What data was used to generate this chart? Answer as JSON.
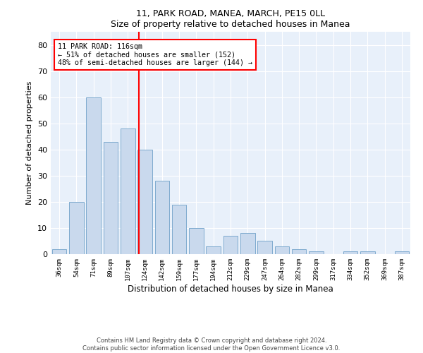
{
  "title1": "11, PARK ROAD, MANEA, MARCH, PE15 0LL",
  "title2": "Size of property relative to detached houses in Manea",
  "xlabel": "Distribution of detached houses by size in Manea",
  "ylabel": "Number of detached properties",
  "bar_color": "#c9d9ed",
  "bar_edge_color": "#6fa0c8",
  "background_color": "#e8f0fa",
  "bins": [
    "36sqm",
    "54sqm",
    "71sqm",
    "89sqm",
    "107sqm",
    "124sqm",
    "142sqm",
    "159sqm",
    "177sqm",
    "194sqm",
    "212sqm",
    "229sqm",
    "247sqm",
    "264sqm",
    "282sqm",
    "299sqm",
    "317sqm",
    "334sqm",
    "352sqm",
    "369sqm",
    "387sqm"
  ],
  "values": [
    2,
    20,
    60,
    43,
    48,
    40,
    28,
    19,
    10,
    3,
    7,
    8,
    5,
    3,
    2,
    1,
    0,
    1,
    1,
    0,
    1
  ],
  "red_line_x": 4.65,
  "annotation_text": "11 PARK ROAD: 116sqm\n← 51% of detached houses are smaller (152)\n48% of semi-detached houses are larger (144) →",
  "annotation_box_color": "white",
  "annotation_box_edge": "red",
  "footer1": "Contains HM Land Registry data © Crown copyright and database right 2024.",
  "footer2": "Contains public sector information licensed under the Open Government Licence v3.0.",
  "ylim": [
    0,
    85
  ],
  "yticks": [
    0,
    10,
    20,
    30,
    40,
    50,
    60,
    70,
    80
  ]
}
